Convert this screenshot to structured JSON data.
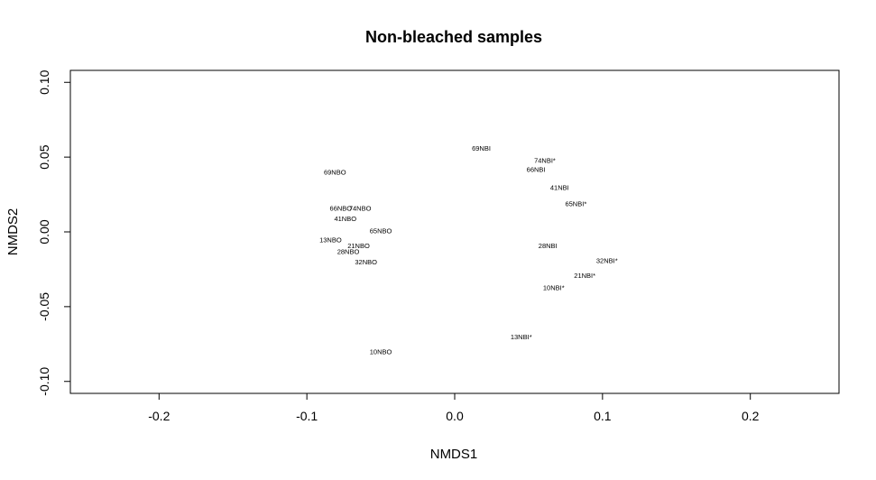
{
  "chart_data": {
    "type": "scatter",
    "title": "Non-bleached samples",
    "xlabel": "NMDS1",
    "ylabel": "NMDS2",
    "xlim": [
      -0.26,
      0.26
    ],
    "ylim": [
      -0.108,
      0.108
    ],
    "x_ticks": [
      -0.2,
      -0.1,
      0.0,
      0.1,
      0.2
    ],
    "x_tick_labels": [
      "-0.2",
      "-0.1",
      "0.0",
      "0.1",
      "0.2"
    ],
    "y_ticks": [
      -0.1,
      -0.05,
      0.0,
      0.05,
      0.1
    ],
    "y_tick_labels": [
      "-0.10",
      "-0.05",
      "0.00",
      "0.05",
      "0.10"
    ],
    "grid": false,
    "points": [
      {
        "label": "69NBI",
        "x": 0.018,
        "y": 0.056
      },
      {
        "label": "74NBI*",
        "x": 0.061,
        "y": 0.048
      },
      {
        "label": "66NBI",
        "x": 0.055,
        "y": 0.042
      },
      {
        "label": "41NBI",
        "x": 0.071,
        "y": 0.03
      },
      {
        "label": "65NBI*",
        "x": 0.082,
        "y": 0.019
      },
      {
        "label": "28NBI",
        "x": 0.063,
        "y": -0.009
      },
      {
        "label": "32NBI*",
        "x": 0.103,
        "y": -0.019
      },
      {
        "label": "21NBI*",
        "x": 0.088,
        "y": -0.029
      },
      {
        "label": "10NBI*",
        "x": 0.067,
        "y": -0.037
      },
      {
        "label": "13NBI*",
        "x": 0.045,
        "y": -0.07
      },
      {
        "label": "69NBO",
        "x": -0.081,
        "y": 0.04
      },
      {
        "label": "66NBO",
        "x": -0.077,
        "y": 0.016
      },
      {
        "label": "74NBO",
        "x": -0.064,
        "y": 0.016
      },
      {
        "label": "41NBO",
        "x": -0.074,
        "y": 0.009
      },
      {
        "label": "65NBO",
        "x": -0.05,
        "y": 0.001
      },
      {
        "label": "13NBO",
        "x": -0.084,
        "y": -0.005
      },
      {
        "label": "21NBO",
        "x": -0.065,
        "y": -0.009
      },
      {
        "label": "28NBO",
        "x": -0.072,
        "y": -0.013
      },
      {
        "label": "32NBO",
        "x": -0.06,
        "y": -0.02
      },
      {
        "label": "10NBO",
        "x": -0.05,
        "y": -0.08
      }
    ]
  }
}
